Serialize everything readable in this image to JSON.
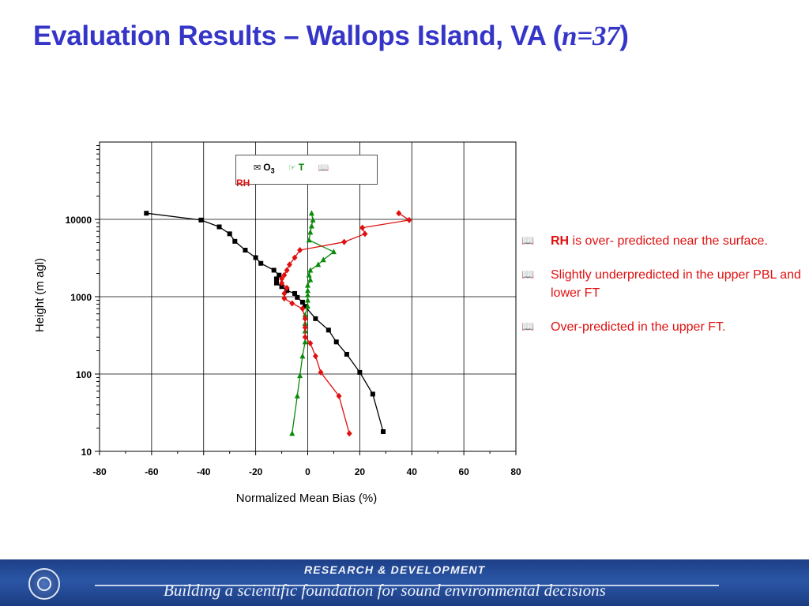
{
  "slide": {
    "title_main": "Evaluation Results – Wallops Island, VA (",
    "title_n": "n=37",
    "title_close": ")"
  },
  "legend": {
    "o3_label": "O",
    "o3_sub": "3",
    "t_label": "T",
    "rh_label": "RH"
  },
  "notes": [
    {
      "bold": "RH",
      "text": " is over- predicted near the surface."
    },
    {
      "bold": "",
      "text": "Slightly underpredicted in the upper PBL and lower FT"
    },
    {
      "bold": "",
      "text": "Over-predicted in the upper FT."
    }
  ],
  "footer": {
    "top": "RESEARCH & DEVELOPMENT",
    "bottom": "Building a scientific foundation for sound environmental decisions"
  },
  "chart_data": {
    "type": "line",
    "xlabel": "Normalized Mean Bias (%)",
    "ylabel": "Height (m agl)",
    "xlim": [
      -80,
      80
    ],
    "xticks": [
      -80,
      -60,
      -40,
      -20,
      0,
      20,
      40,
      60,
      80
    ],
    "ylim": [
      10,
      100000
    ],
    "yscale": "log",
    "yticks": [
      10,
      100,
      1000,
      10000
    ],
    "grid": true,
    "legend_position": "top-center",
    "series": [
      {
        "name": "O3",
        "color": "#000000",
        "marker": "square",
        "points": [
          [
            -62,
            12000
          ],
          [
            -41,
            9800
          ],
          [
            -34,
            8000
          ],
          [
            -30,
            6500
          ],
          [
            -28,
            5200
          ],
          [
            -24,
            4000
          ],
          [
            -20,
            3200
          ],
          [
            -18,
            2700
          ],
          [
            -13,
            2200
          ],
          [
            -11,
            1900
          ],
          [
            -12,
            1700
          ],
          [
            -12,
            1500
          ],
          [
            -10,
            1350
          ],
          [
            -8,
            1200
          ],
          [
            -5,
            1100
          ],
          [
            -4,
            980
          ],
          [
            -2,
            850
          ],
          [
            -1,
            750
          ],
          [
            3,
            520
          ],
          [
            8,
            370
          ],
          [
            11,
            260
          ],
          [
            15,
            180
          ],
          [
            20,
            105
          ],
          [
            25,
            55
          ],
          [
            29,
            18
          ]
        ]
      },
      {
        "name": "T",
        "color": "#0a8a0a",
        "marker": "triangle",
        "points": [
          [
            1.5,
            12000
          ],
          [
            2,
            9800
          ],
          [
            1.5,
            8200
          ],
          [
            1,
            6800
          ],
          [
            0.5,
            5400
          ],
          [
            10,
            3800
          ],
          [
            6,
            3000
          ],
          [
            4,
            2600
          ],
          [
            1,
            2200
          ],
          [
            0.5,
            1900
          ],
          [
            1,
            1650
          ],
          [
            0,
            1400
          ],
          [
            0,
            1200
          ],
          [
            0,
            1050
          ],
          [
            0,
            900
          ],
          [
            0,
            750
          ],
          [
            -1,
            580
          ],
          [
            -1,
            450
          ],
          [
            -1,
            360
          ],
          [
            -1,
            260
          ],
          [
            -2,
            170
          ],
          [
            -3,
            95
          ],
          [
            -4,
            52
          ],
          [
            -6,
            17
          ]
        ]
      },
      {
        "name": "RH",
        "color": "#e01010",
        "marker": "diamond",
        "points": [
          [
            35,
            12000
          ],
          [
            39,
            9800
          ],
          [
            21,
            7800
          ],
          [
            22,
            6500
          ],
          [
            14,
            5100
          ],
          [
            -3,
            4000
          ],
          [
            -5,
            3200
          ],
          [
            -7,
            2600
          ],
          [
            -8,
            2200
          ],
          [
            -9,
            1900
          ],
          [
            -10,
            1700
          ],
          [
            -10,
            1500
          ],
          [
            -8,
            1300
          ],
          [
            -9,
            1100
          ],
          [
            -9,
            950
          ],
          [
            -6,
            820
          ],
          [
            -2,
            700
          ],
          [
            -1,
            520
          ],
          [
            -1,
            400
          ],
          [
            -1,
            300
          ],
          [
            1,
            250
          ],
          [
            3,
            170
          ],
          [
            5,
            105
          ],
          [
            12,
            52
          ],
          [
            16,
            17
          ]
        ]
      }
    ]
  }
}
